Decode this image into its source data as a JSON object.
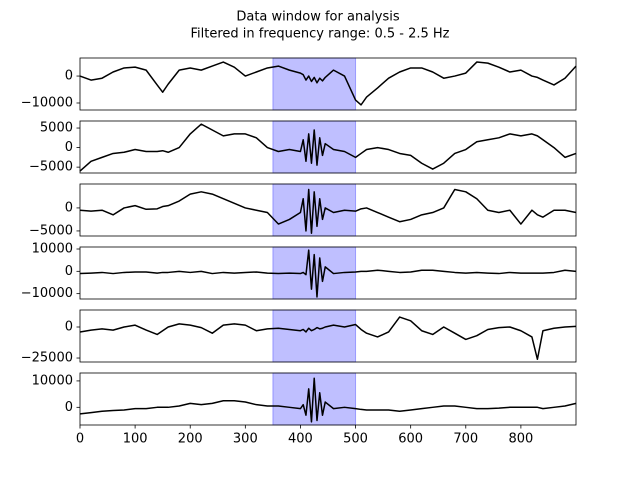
{
  "title": "Data window for analysis",
  "subtitle": "Filtered in frequency range: 0.5 - 2.5  Hz",
  "chart_data": [
    {
      "type": "line",
      "xlim": [
        0,
        900
      ],
      "ylim": [
        -12600,
        6700
      ],
      "yticks": [
        {
          "value": -10000,
          "label": "−10000"
        },
        0
      ],
      "highlight": {
        "xmin": 350,
        "xmax": 500,
        "color": "#0000ff"
      },
      "x": [
        0,
        20,
        40,
        60,
        80,
        100,
        120,
        140,
        150,
        160,
        180,
        200,
        220,
        240,
        260,
        280,
        300,
        320,
        340,
        360,
        380,
        400,
        405,
        410,
        415,
        420,
        425,
        430,
        435,
        440,
        445,
        460,
        480,
        500,
        510,
        520,
        540,
        560,
        580,
        600,
        620,
        640,
        660,
        680,
        700,
        720,
        740,
        760,
        780,
        800,
        820,
        830,
        840,
        860,
        880,
        900
      ],
      "series": [
        {
          "color": "#000000",
          "values": [
            0,
            -1500,
            -800,
            1500,
            3000,
            3300,
            2200,
            -3300,
            -6000,
            -3000,
            2200,
            3000,
            2200,
            3700,
            5200,
            3300,
            0,
            1500,
            3000,
            3700,
            2200,
            1100,
            500,
            -1500,
            0,
            -2000,
            -500,
            -2500,
            -800,
            -1800,
            -500,
            2200,
            0,
            -8900,
            -10700,
            -7800,
            -4400,
            -800,
            1500,
            3000,
            3000,
            1500,
            -800,
            0,
            1100,
            5200,
            4800,
            3300,
            1500,
            2200,
            0,
            -500,
            -1500,
            -3300,
            -800,
            3700
          ]
        }
      ]
    },
    {
      "type": "line",
      "xlim": [
        0,
        900
      ],
      "ylim": [
        -6500,
        6800
      ],
      "yticks": [
        {
          "value": -5000,
          "label": "−5000"
        },
        0,
        5000
      ],
      "highlight": {
        "xmin": 350,
        "xmax": 500,
        "color": "#0000ff"
      },
      "x": [
        0,
        20,
        40,
        60,
        80,
        100,
        120,
        140,
        150,
        160,
        180,
        200,
        220,
        240,
        260,
        280,
        300,
        320,
        340,
        360,
        380,
        400,
        405,
        410,
        415,
        420,
        425,
        430,
        435,
        440,
        445,
        460,
        480,
        500,
        510,
        520,
        540,
        560,
        580,
        600,
        620,
        640,
        660,
        680,
        700,
        720,
        740,
        760,
        780,
        800,
        820,
        830,
        840,
        860,
        880,
        900
      ],
      "series": [
        {
          "color": "#000000",
          "values": [
            -6000,
            -3500,
            -2500,
            -1500,
            -1200,
            -500,
            -1000,
            -1000,
            -800,
            -1200,
            0,
            3500,
            6000,
            4500,
            3000,
            3500,
            3500,
            2500,
            0,
            -1000,
            -500,
            -1000,
            2000,
            -3500,
            3500,
            -4000,
            4500,
            -4500,
            2500,
            -2000,
            1000,
            -500,
            -1000,
            -2500,
            -1500,
            -500,
            0,
            -500,
            -1500,
            -2000,
            -4000,
            -5500,
            -4000,
            -1500,
            -500,
            1500,
            2000,
            2500,
            3500,
            3000,
            3500,
            3000,
            2000,
            0,
            -2500,
            -1500
          ]
        }
      ]
    },
    {
      "type": "line",
      "xlim": [
        0,
        900
      ],
      "ylim": [
        -6100,
        5200
      ],
      "yticks": [
        {
          "value": -5000,
          "label": "−5000"
        },
        0
      ],
      "highlight": {
        "xmin": 350,
        "xmax": 500,
        "color": "#0000ff"
      },
      "x": [
        0,
        20,
        40,
        60,
        80,
        100,
        120,
        140,
        150,
        160,
        180,
        200,
        220,
        240,
        260,
        280,
        300,
        320,
        340,
        360,
        380,
        400,
        405,
        410,
        415,
        420,
        425,
        430,
        435,
        440,
        445,
        460,
        480,
        500,
        510,
        520,
        540,
        560,
        580,
        600,
        620,
        640,
        660,
        680,
        700,
        720,
        740,
        760,
        780,
        800,
        820,
        830,
        840,
        860,
        880,
        900
      ],
      "series": [
        {
          "color": "#000000",
          "values": [
            -500,
            -700,
            -500,
            -1500,
            0,
            500,
            -300,
            -200,
            300,
            500,
            1500,
            3000,
            3500,
            3000,
            2000,
            1000,
            0,
            -500,
            -1000,
            -3500,
            -2500,
            -1000,
            2000,
            -5000,
            4000,
            -5500,
            3500,
            -4000,
            2000,
            -2500,
            0,
            -1000,
            -500,
            -700,
            -200,
            0,
            -1000,
            -2000,
            -3000,
            -2500,
            -1500,
            -1000,
            0,
            4000,
            3500,
            2000,
            -500,
            -1000,
            -500,
            -3500,
            -500,
            -1500,
            -2000,
            -500,
            -500,
            -1000
          ]
        }
      ]
    },
    {
      "type": "line",
      "xlim": [
        0,
        900
      ],
      "ylim": [
        -12400,
        10900
      ],
      "yticks": [
        {
          "value": -10000,
          "label": "−10000"
        },
        0,
        10000
      ],
      "highlight": {
        "xmin": 350,
        "xmax": 500,
        "color": "#0000ff"
      },
      "x": [
        0,
        20,
        40,
        60,
        80,
        100,
        120,
        140,
        150,
        160,
        180,
        200,
        220,
        240,
        260,
        280,
        300,
        320,
        340,
        360,
        380,
        400,
        405,
        410,
        415,
        420,
        425,
        430,
        435,
        440,
        445,
        460,
        480,
        500,
        510,
        520,
        540,
        560,
        580,
        600,
        620,
        640,
        660,
        680,
        700,
        720,
        740,
        760,
        780,
        800,
        820,
        830,
        840,
        860,
        880,
        900
      ],
      "series": [
        {
          "color": "#000000",
          "values": [
            -1000,
            -800,
            -500,
            -1000,
            -500,
            -300,
            -300,
            -800,
            -500,
            -500,
            0,
            -500,
            0,
            -1000,
            -500,
            -800,
            -500,
            -300,
            -800,
            -1000,
            -800,
            -1000,
            -500,
            -1500,
            9500,
            -8000,
            7500,
            -11500,
            6000,
            -4500,
            2000,
            -1000,
            -500,
            -300,
            0,
            0,
            500,
            0,
            -500,
            -300,
            500,
            500,
            0,
            -500,
            -800,
            -500,
            -800,
            -1000,
            -500,
            -800,
            -800,
            -800,
            -800,
            -500,
            500,
            0
          ]
        }
      ]
    },
    {
      "type": "line",
      "xlim": [
        0,
        900
      ],
      "ylim": [
        -28200,
        13700
      ],
      "yticks": [
        {
          "value": -25000,
          "label": "−25000"
        },
        0
      ],
      "highlight": {
        "xmin": 350,
        "xmax": 500,
        "color": "#0000ff"
      },
      "x": [
        0,
        20,
        40,
        60,
        80,
        100,
        120,
        140,
        150,
        160,
        180,
        200,
        220,
        240,
        260,
        280,
        300,
        320,
        340,
        360,
        380,
        400,
        405,
        410,
        415,
        420,
        425,
        430,
        435,
        440,
        445,
        460,
        480,
        500,
        510,
        520,
        540,
        560,
        580,
        600,
        620,
        640,
        660,
        680,
        700,
        720,
        740,
        760,
        780,
        800,
        820,
        830,
        840,
        860,
        880,
        900
      ],
      "series": [
        {
          "color": "#000000",
          "values": [
            -4000,
            -2500,
            -1500,
            -2500,
            0,
            1500,
            -2500,
            -6000,
            -3000,
            0,
            2500,
            1500,
            -500,
            -5000,
            1500,
            2500,
            1500,
            -3000,
            -1500,
            -1000,
            -2000,
            -3000,
            -2000,
            -4000,
            -1000,
            -3000,
            -2000,
            -500,
            -1500,
            -1000,
            0,
            1500,
            0,
            2000,
            -2000,
            -5000,
            -8000,
            -4000,
            8000,
            5000,
            -3000,
            -6000,
            0,
            -5000,
            -10000,
            -7000,
            -2000,
            -500,
            0,
            -3000,
            -8000,
            -26000,
            -3000,
            -1000,
            0,
            500
          ]
        }
      ]
    },
    {
      "type": "line",
      "xlim": [
        0,
        900
      ],
      "ylim": [
        -6700,
        13000
      ],
      "yticks": [
        0,
        10000
      ],
      "xticks": [
        0,
        100,
        200,
        300,
        400,
        500,
        600,
        700,
        800
      ],
      "highlight": {
        "xmin": 350,
        "xmax": 500,
        "color": "#0000ff"
      },
      "x": [
        0,
        20,
        40,
        60,
        80,
        100,
        120,
        140,
        150,
        160,
        180,
        200,
        220,
        240,
        260,
        280,
        300,
        320,
        340,
        360,
        380,
        400,
        405,
        410,
        415,
        420,
        425,
        430,
        435,
        440,
        445,
        460,
        480,
        500,
        510,
        520,
        540,
        560,
        580,
        600,
        620,
        640,
        660,
        680,
        700,
        720,
        740,
        760,
        780,
        800,
        820,
        830,
        840,
        860,
        880,
        900
      ],
      "series": [
        {
          "color": "#000000",
          "values": [
            -2500,
            -2000,
            -1500,
            -1200,
            -1000,
            -500,
            -500,
            0,
            0,
            0,
            500,
            1500,
            1000,
            1500,
            2500,
            2500,
            2000,
            1000,
            500,
            500,
            0,
            -500,
            1000,
            -3000,
            7000,
            -5500,
            11000,
            -5000,
            5500,
            -3000,
            2000,
            -500,
            0,
            -500,
            -800,
            -1000,
            -1000,
            -1000,
            -1500,
            -1000,
            -500,
            0,
            500,
            500,
            0,
            -500,
            -500,
            -300,
            0,
            0,
            0,
            0,
            -500,
            0,
            500,
            1500
          ]
        }
      ]
    }
  ]
}
